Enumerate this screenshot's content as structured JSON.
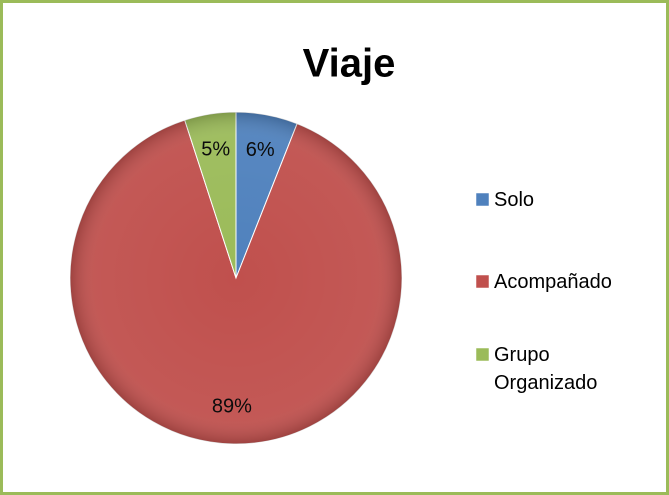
{
  "chart_data": {
    "type": "pie",
    "title": "Viaje",
    "categories": [
      "Solo",
      "Acompañado",
      "Grupo Organizado"
    ],
    "values": [
      6,
      89,
      5
    ],
    "value_labels": [
      "6%",
      "89%",
      "5%"
    ],
    "colors": [
      "#4f81bd",
      "#c0504d",
      "#9bbb59"
    ],
    "legend": "right"
  }
}
